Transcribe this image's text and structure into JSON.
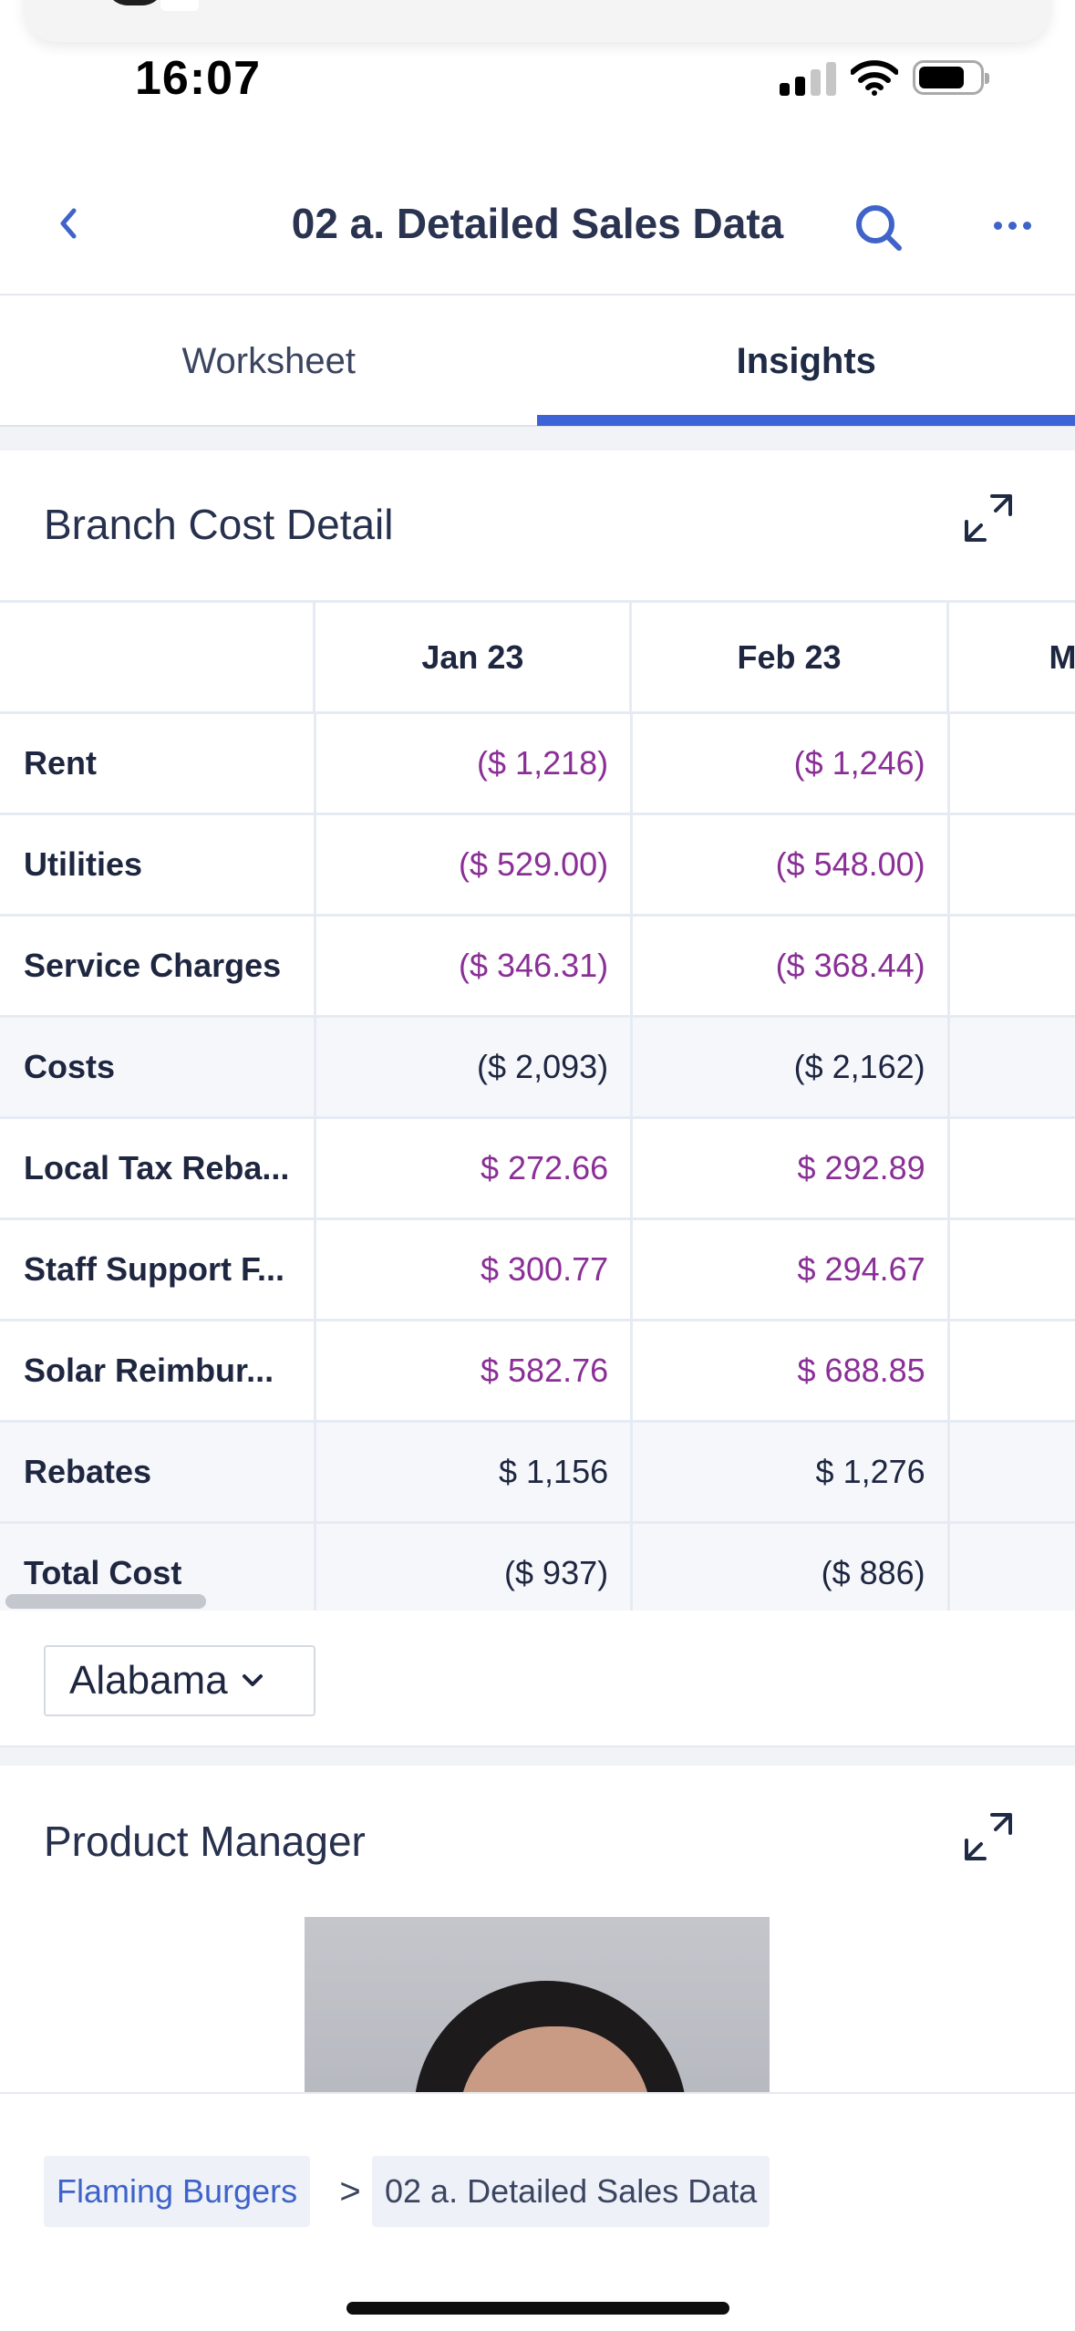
{
  "status": {
    "time": "16:07"
  },
  "nav": {
    "title": "02 a. Detailed Sales Data"
  },
  "tabs": [
    {
      "label": "Worksheet",
      "active": false
    },
    {
      "label": "Insights",
      "active": true
    }
  ],
  "branch_cost": {
    "title": "Branch Cost Detail",
    "columns": [
      "Jan 23",
      "Feb 23",
      "M"
    ],
    "rows": [
      {
        "label": "Rent",
        "jan": "($ 1,218)",
        "feb": "($ 1,246)",
        "tone": "purple"
      },
      {
        "label": "Utilities",
        "jan": "($ 529.00)",
        "feb": "($ 548.00)",
        "tone": "purple"
      },
      {
        "label": "Service Charges",
        "jan": "($ 346.31)",
        "feb": "($ 368.44)",
        "tone": "purple"
      },
      {
        "label": "Costs",
        "jan": "($ 2,093)",
        "feb": "($ 2,162)",
        "tone": "dark"
      },
      {
        "label": "Local Tax Reba...",
        "jan": "$ 272.66",
        "feb": "$ 292.89",
        "tone": "purple"
      },
      {
        "label": "Staff Support F...",
        "jan": "$ 300.77",
        "feb": "$ 294.67",
        "tone": "purple"
      },
      {
        "label": "Solar Reimbur...",
        "jan": "$ 582.76",
        "feb": "$ 688.85",
        "tone": "purple"
      },
      {
        "label": "Rebates",
        "jan": "$ 1,156",
        "feb": "$ 1,276",
        "tone": "dark"
      },
      {
        "label": "Total Cost",
        "jan": "($ 937)",
        "feb": "($ 886)",
        "tone": "dark"
      }
    ],
    "region": "Alabama"
  },
  "product_manager": {
    "title": "Product Manager"
  },
  "breadcrumb": {
    "parent": "Flaming Burgers",
    "separator": ">",
    "current": "02 a. Detailed Sales Data"
  },
  "colors": {
    "accent": "#3e63d6",
    "value_purple": "#8a2f96",
    "text_dark": "#1e2640"
  }
}
